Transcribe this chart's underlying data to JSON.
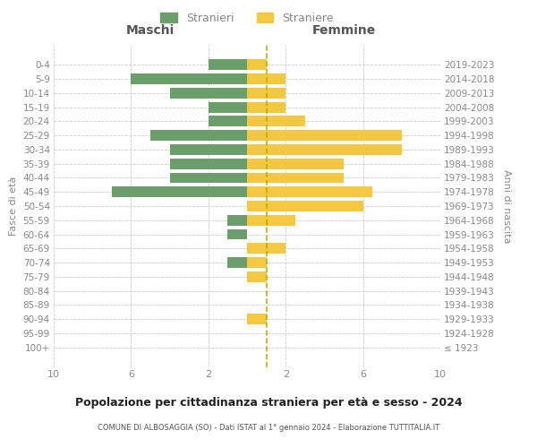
{
  "age_groups": [
    "100+",
    "95-99",
    "90-94",
    "85-89",
    "80-84",
    "75-79",
    "70-74",
    "65-69",
    "60-64",
    "55-59",
    "50-54",
    "45-49",
    "40-44",
    "35-39",
    "30-34",
    "25-29",
    "20-24",
    "15-19",
    "10-14",
    "5-9",
    "0-4"
  ],
  "birth_years": [
    "≤ 1923",
    "1924-1928",
    "1929-1933",
    "1934-1938",
    "1939-1943",
    "1944-1948",
    "1949-1953",
    "1954-1958",
    "1959-1963",
    "1964-1968",
    "1969-1973",
    "1974-1978",
    "1979-1983",
    "1984-1988",
    "1989-1993",
    "1994-1998",
    "1999-2003",
    "2004-2008",
    "2009-2013",
    "2014-2018",
    "2019-2023"
  ],
  "males": [
    0,
    0,
    0,
    0,
    0,
    0,
    1,
    0,
    1,
    1,
    0,
    7,
    4,
    4,
    4,
    5,
    2,
    2,
    4,
    6,
    2
  ],
  "females": [
    0,
    0,
    1,
    0,
    0,
    1,
    1,
    2,
    0,
    2.5,
    6,
    6.5,
    5,
    5,
    8,
    8,
    3,
    2,
    2,
    2,
    1
  ],
  "color_male": "#6b9e6b",
  "color_female": "#f5c842",
  "title": "Popolazione per cittadinanza straniera per età e sesso - 2024",
  "subtitle": "COMUNE DI ALBOSAGGIA (SO) - Dati ISTAT al 1° gennaio 2024 - Elaborazione TUTTITALIA.IT",
  "xlabel_left": "Maschi",
  "xlabel_right": "Femmine",
  "ylabel_left": "Fasce di età",
  "ylabel_right": "Anni di nascita",
  "legend_male": "Stranieri",
  "legend_female": "Straniere",
  "xlim": 10,
  "bg_color": "#ffffff",
  "grid_color": "#cccccc",
  "tick_label_color": "#888888",
  "dashed_line_color": "#b8a800"
}
